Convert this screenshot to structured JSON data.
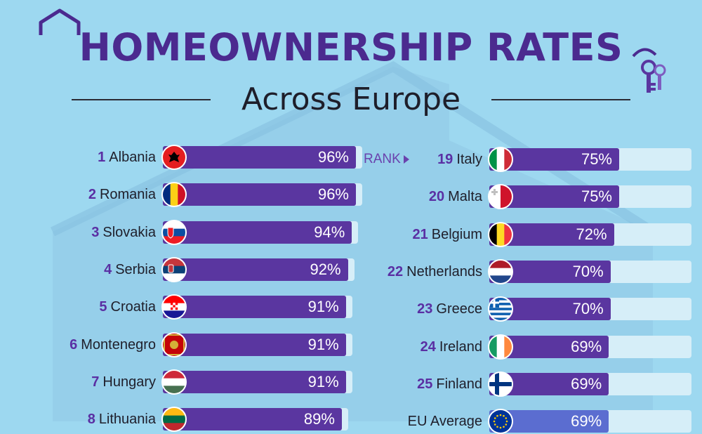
{
  "header": {
    "title": "HOMEOWNERSHIP RATES",
    "subtitle": "Across Europe",
    "rank_marker": "RANK"
  },
  "colors": {
    "background": "#9dd8f0",
    "title": "#4b2a8f",
    "bar": "#5a36a0",
    "eu_bar": "#5b6dd0",
    "track": "#d6eef8"
  },
  "icons": [
    "house-icon",
    "keys-icon"
  ],
  "chart_data": {
    "type": "bar",
    "orientation": "horizontal",
    "title": "HOMEOWNERSHIP RATES",
    "subtitle": "Across Europe",
    "xlim": [
      0,
      100
    ],
    "unit": "%",
    "columns": [
      {
        "items": [
          {
            "rank": "1",
            "country": "Albania",
            "value": 96,
            "label": "96%",
            "flag": "albania-flag-icon"
          },
          {
            "rank": "2",
            "country": "Romania",
            "value": 96,
            "label": "96%",
            "flag": "romania-flag-icon"
          },
          {
            "rank": "3",
            "country": "Slovakia",
            "value": 94,
            "label": "94%",
            "flag": "slovakia-flag-icon"
          },
          {
            "rank": "4",
            "country": "Serbia",
            "value": 92,
            "label": "92%",
            "flag": "serbia-flag-icon"
          },
          {
            "rank": "5",
            "country": "Croatia",
            "value": 91,
            "label": "91%",
            "flag": "croatia-flag-icon"
          },
          {
            "rank": "6",
            "country": "Montenegro",
            "value": 91,
            "label": "91%",
            "flag": "montenegro-flag-icon"
          },
          {
            "rank": "7",
            "country": "Hungary",
            "value": 91,
            "label": "91%",
            "flag": "hungary-flag-icon"
          },
          {
            "rank": "8",
            "country": "Lithuania",
            "value": 89,
            "label": "89%",
            "flag": "lithuania-flag-icon"
          }
        ]
      },
      {
        "items": [
          {
            "rank": "19",
            "country": "Italy",
            "value": 75,
            "label": "75%",
            "flag": "italy-flag-icon"
          },
          {
            "rank": "20",
            "country": "Malta",
            "value": 75,
            "label": "75%",
            "flag": "malta-flag-icon"
          },
          {
            "rank": "21",
            "country": "Belgium",
            "value": 72,
            "label": "72%",
            "flag": "belgium-flag-icon"
          },
          {
            "rank": "22",
            "country": "Netherlands",
            "value": 70,
            "label": "70%",
            "flag": "netherlands-flag-icon"
          },
          {
            "rank": "23",
            "country": "Greece",
            "value": 70,
            "label": "70%",
            "flag": "greece-flag-icon"
          },
          {
            "rank": "24",
            "country": "Ireland",
            "value": 69,
            "label": "69%",
            "flag": "ireland-flag-icon"
          },
          {
            "rank": "25",
            "country": "Finland",
            "value": 69,
            "label": "69%",
            "flag": "finland-flag-icon"
          },
          {
            "rank": "",
            "country": "EU Average",
            "value": 69,
            "label": "69%",
            "flag": "eu-flag-icon"
          }
        ]
      }
    ]
  }
}
